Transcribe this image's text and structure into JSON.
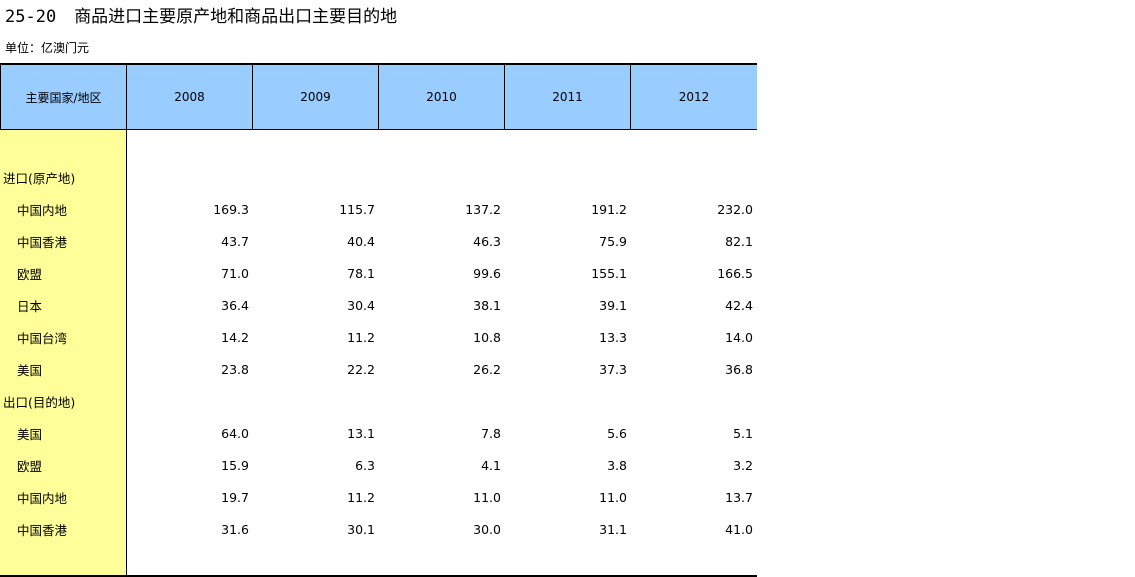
{
  "title": {
    "number": "25-20",
    "text": "商品进口主要原产地和商品出口主要目的地"
  },
  "unit": "单位：亿澳门元",
  "table": {
    "corner_header": "主要国家/地区",
    "years": [
      "2008",
      "2009",
      "2010",
      "2011",
      "2012"
    ],
    "sections": [
      {
        "heading": "进口(原产地)",
        "rows": [
          {
            "label": "中国内地",
            "values": [
              "169.3",
              "115.7",
              "137.2",
              "191.2",
              "232.0"
            ]
          },
          {
            "label": "中国香港",
            "values": [
              "43.7",
              "40.4",
              "46.3",
              "75.9",
              "82.1"
            ]
          },
          {
            "label": "欧盟",
            "values": [
              "71.0",
              "78.1",
              "99.6",
              "155.1",
              "166.5"
            ]
          },
          {
            "label": "日本",
            "values": [
              "36.4",
              "30.4",
              "38.1",
              "39.1",
              "42.4"
            ]
          },
          {
            "label": "中国台湾",
            "values": [
              "14.2",
              "11.2",
              "10.8",
              "13.3",
              "14.0"
            ]
          },
          {
            "label": "美国",
            "values": [
              "23.8",
              "22.2",
              "26.2",
              "37.3",
              "36.8"
            ]
          }
        ]
      },
      {
        "heading": "出口(目的地)",
        "rows": [
          {
            "label": "美国",
            "values": [
              "64.0",
              "13.1",
              "7.8",
              "5.6",
              "5.1"
            ]
          },
          {
            "label": "欧盟",
            "values": [
              "15.9",
              "6.3",
              "4.1",
              "3.8",
              "3.2"
            ]
          },
          {
            "label": "中国内地",
            "values": [
              "19.7",
              "11.2",
              "11.0",
              "11.0",
              "13.7"
            ]
          },
          {
            "label": "中国香港",
            "values": [
              "31.6",
              "30.1",
              "30.0",
              "31.1",
              "41.0"
            ]
          }
        ]
      }
    ]
  },
  "colors": {
    "header_bg": "#99ccff",
    "label_column_bg": "#ffff99"
  }
}
